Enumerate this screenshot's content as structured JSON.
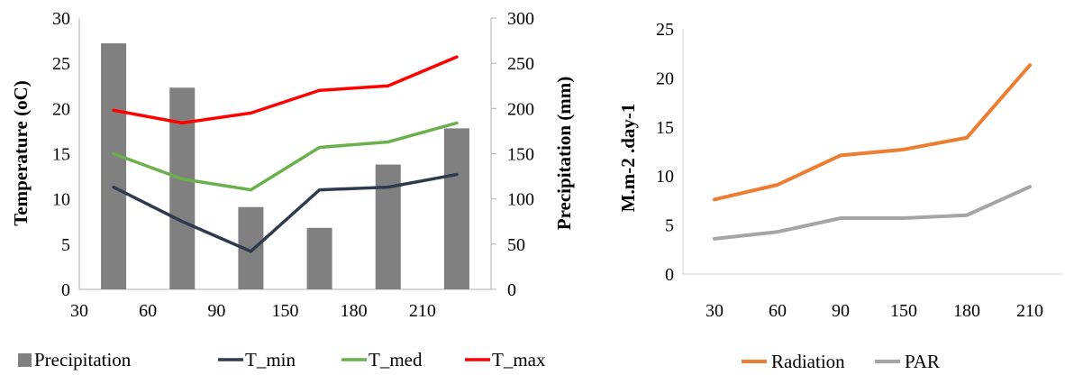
{
  "chart_data": [
    {
      "type": "bar+line",
      "categories": [
        "30",
        "60",
        "90",
        "150",
        "180",
        "210"
      ],
      "series": [
        {
          "name": "Precipitation",
          "kind": "bar",
          "axis": "right",
          "color": "#808080",
          "values": [
            272,
            223,
            91,
            68,
            138,
            178
          ]
        },
        {
          "name": "T_min",
          "kind": "line",
          "axis": "left",
          "color": "#2e3b4e",
          "values": [
            11.3,
            7.5,
            4.2,
            11.0,
            11.3,
            12.7
          ]
        },
        {
          "name": "T_med",
          "kind": "line",
          "axis": "left",
          "color": "#6ab04c",
          "values": [
            15.0,
            12.2,
            11.0,
            15.7,
            16.3,
            18.4
          ]
        },
        {
          "name": "T_max",
          "kind": "line",
          "axis": "left",
          "color": "#ff0000",
          "values": [
            19.8,
            18.4,
            19.5,
            22.0,
            22.5,
            25.7
          ]
        }
      ],
      "ylabel": "Temperature  (oC)",
      "y2label": "Precipitation (mm)",
      "ylim": [
        0,
        30
      ],
      "y2lim": [
        0,
        300
      ],
      "yticks": [
        "0",
        "5",
        "10",
        "15",
        "20",
        "25",
        "30"
      ],
      "y2ticks": [
        "0",
        "50",
        "100",
        "150",
        "200",
        "250",
        "300"
      ],
      "legend": [
        "Precipitation",
        "T_min",
        "T_med",
        "T_max"
      ],
      "legend_position": "bottom",
      "grid": false
    },
    {
      "type": "line",
      "categories": [
        "30",
        "60",
        "90",
        "150",
        "180",
        "210"
      ],
      "series": [
        {
          "name": "Radiation",
          "color": "#ed7d31",
          "values": [
            7.6,
            9.1,
            12.1,
            12.7,
            13.9,
            21.3
          ]
        },
        {
          "name": "PAR",
          "color": "#a5a5a5",
          "values": [
            3.6,
            4.3,
            5.7,
            5.7,
            6.0,
            8.9
          ]
        }
      ],
      "ylabel": "M.m-2 .day-1",
      "ylim": [
        0,
        25
      ],
      "yticks": [
        "0",
        "5",
        "10",
        "15",
        "20",
        "25"
      ],
      "legend": [
        "Radiation",
        "PAR"
      ],
      "legend_position": "bottom",
      "grid": false
    }
  ]
}
